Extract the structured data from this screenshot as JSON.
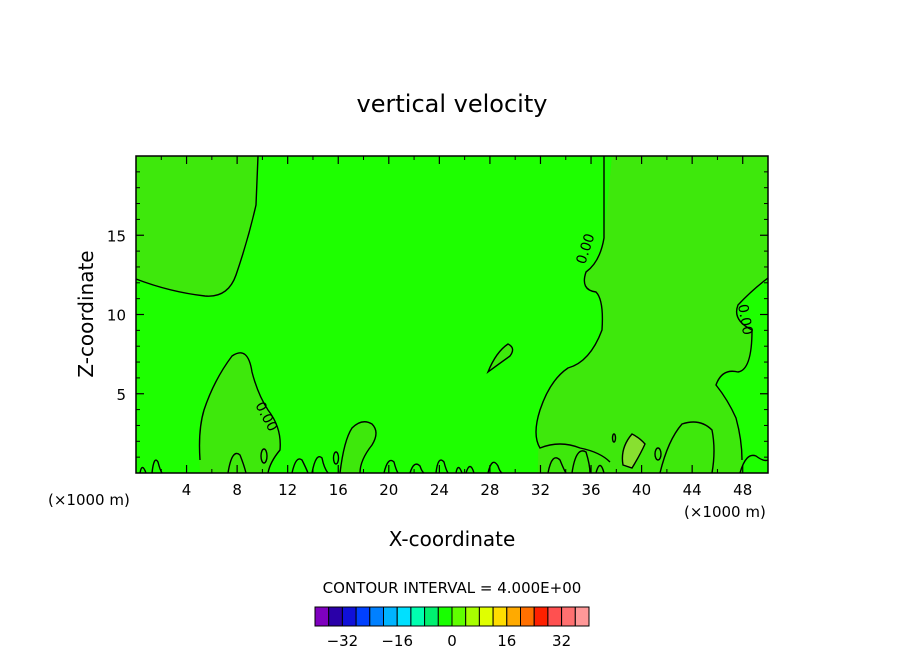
{
  "chart_data": {
    "type": "heatmap",
    "title": "vertical velocity",
    "xlabel": "X-coordinate",
    "ylabel": "Z-coordinate",
    "x_unit_left": "(×1000 m)",
    "x_unit_right": "(×1000 m)",
    "xlim": [
      0,
      50
    ],
    "ylim": [
      0,
      20
    ],
    "x_ticks": [
      4,
      8,
      12,
      16,
      20,
      24,
      28,
      32,
      36,
      40,
      44,
      48
    ],
    "x_tick_labels": [
      "4",
      "8",
      "12",
      "16",
      "20",
      "24",
      "28",
      "32",
      "36",
      "40",
      "44",
      "48"
    ],
    "y_ticks": [
      5,
      10,
      15
    ],
    "y_tick_labels": [
      "5",
      "10",
      "15"
    ],
    "contour_interval_text": "CONTOUR INTERVAL = 4.000E+00",
    "contour_labels": [
      "0.00",
      "0.00",
      "0.00"
    ],
    "colorbar": {
      "colors": [
        "#7f00bf",
        "#2a00a8",
        "#1010d8",
        "#0040ff",
        "#0080ff",
        "#00b4ff",
        "#00e0ff",
        "#00ffb0",
        "#00f070",
        "#18ff00",
        "#60ff00",
        "#a8ff00",
        "#e0ff00",
        "#ffdd00",
        "#ffaa00",
        "#ff7000",
        "#ff2000",
        "#ff5050",
        "#ff7070",
        "#ff9898"
      ],
      "tick_values": [
        -32,
        -16,
        0,
        16,
        32
      ],
      "tick_labels": [
        "−32",
        "−16",
        "0",
        "16",
        "32"
      ]
    },
    "field_colors": {
      "background": "#1eff00",
      "positive": "#3ee80c",
      "strong_positive": "#88e030"
    }
  }
}
